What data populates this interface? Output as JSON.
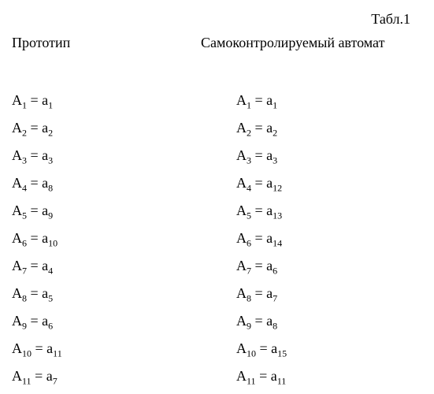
{
  "table_label": "Табл.1",
  "headers": {
    "left": "Прототип",
    "right": "Самоконтролируемый автомат"
  },
  "left_col": [
    {
      "A_sub": "1",
      "a_sub": "1"
    },
    {
      "A_sub": "2",
      "a_sub": "2"
    },
    {
      "A_sub": "3",
      "a_sub": "3"
    },
    {
      "A_sub": "4",
      "a_sub": "8"
    },
    {
      "A_sub": "5",
      "a_sub": "9"
    },
    {
      "A_sub": "6",
      "a_sub": "10"
    },
    {
      "A_sub": "7",
      "a_sub": "4"
    },
    {
      "A_sub": "8",
      "a_sub": "5"
    },
    {
      "A_sub": "9",
      "a_sub": "6"
    },
    {
      "A_sub": "10",
      "a_sub": "11"
    },
    {
      "A_sub": "11",
      "a_sub": "7"
    }
  ],
  "right_col": [
    {
      "A_sub": "1",
      "a_sub": "1"
    },
    {
      "A_sub": "2",
      "a_sub": "2"
    },
    {
      "A_sub": "3",
      "a_sub": "3"
    },
    {
      "A_sub": "4",
      "a_sub": "12"
    },
    {
      "A_sub": "5",
      "a_sub": "13"
    },
    {
      "A_sub": "6",
      "a_sub": "14"
    },
    {
      "A_sub": "7",
      "a_sub": "6"
    },
    {
      "A_sub": "8",
      "a_sub": "7"
    },
    {
      "A_sub": "9",
      "a_sub": "8"
    },
    {
      "A_sub": "10",
      "a_sub": "15"
    },
    {
      "A_sub": "11",
      "a_sub": "11"
    }
  ],
  "style": {
    "font_family": "Times New Roman",
    "font_size_pt": 14,
    "text_color": "#000000",
    "background_color": "#ffffff"
  }
}
